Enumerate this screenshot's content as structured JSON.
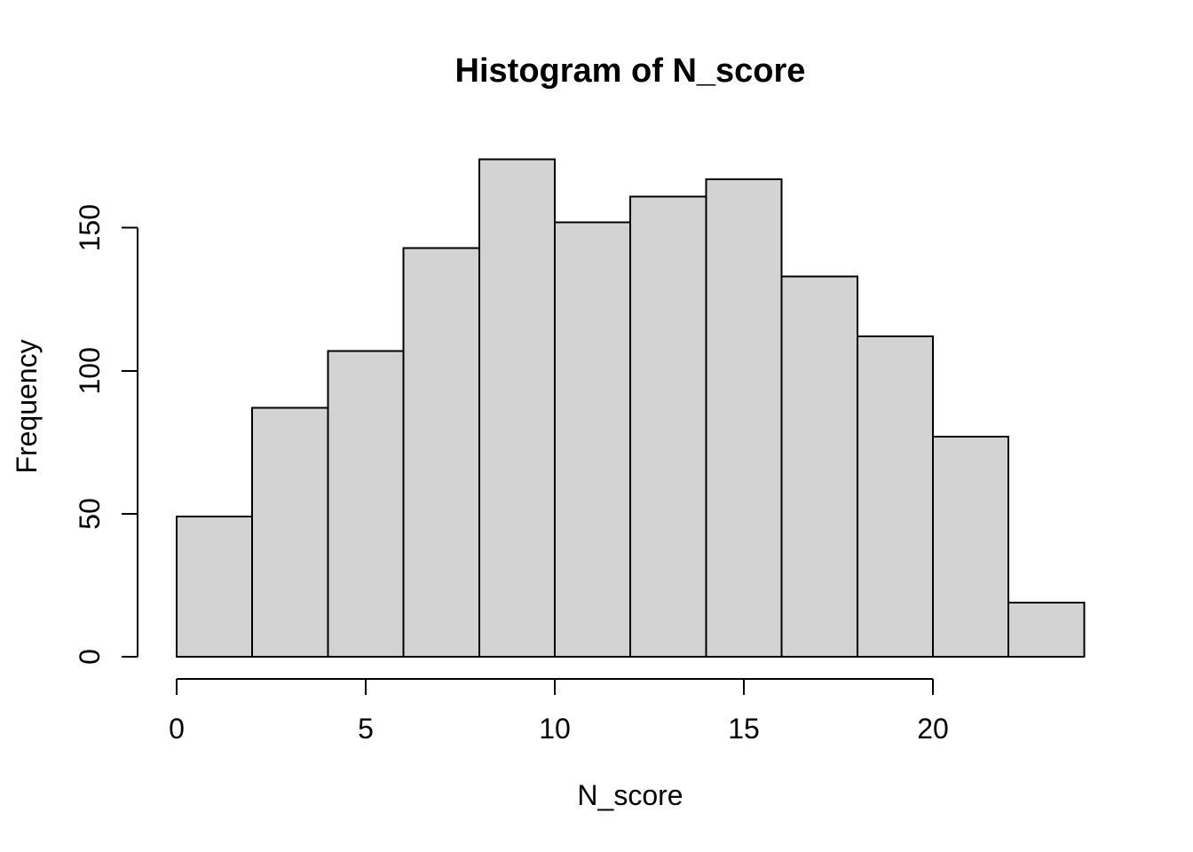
{
  "chart_data": {
    "type": "bar",
    "subtype": "histogram",
    "title": "Histogram of N_score",
    "xlabel": "N_score",
    "ylabel": "Frequency",
    "bin_width": 2,
    "bin_edges": [
      0,
      2,
      4,
      6,
      8,
      10,
      12,
      14,
      16,
      18,
      20,
      22,
      24
    ],
    "values": [
      49,
      87,
      107,
      143,
      174,
      152,
      161,
      167,
      133,
      112,
      77,
      19
    ],
    "x_ticks": [
      0,
      5,
      10,
      15,
      20
    ],
    "y_ticks": [
      0,
      50,
      100,
      150
    ],
    "xlim": [
      0,
      24
    ],
    "ylim": [
      0,
      174
    ],
    "grid": "off",
    "legend": "none",
    "bar_fill": "#d3d3d3",
    "bar_border": "#000000",
    "axis_color": "#000000",
    "background": "#ffffff"
  }
}
